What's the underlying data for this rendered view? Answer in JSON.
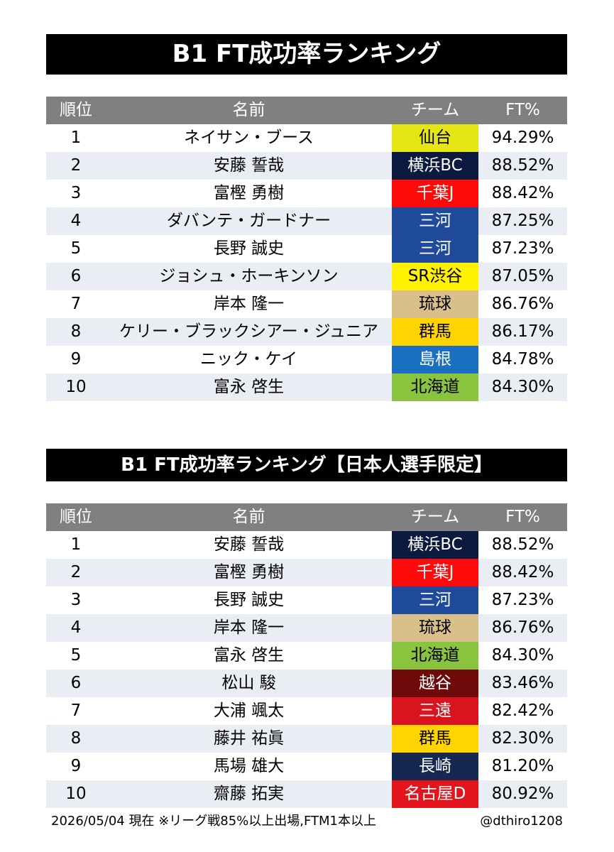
{
  "ranking_all": {
    "title": "B1 FT成功率ランキング",
    "headers": {
      "rank": "順位",
      "name": "名前",
      "team": "チーム",
      "ft": "FT%"
    },
    "rows": [
      {
        "rank": "1",
        "name": "ネイサン・ブース",
        "team": "仙台",
        "ft": "94.29%",
        "team_bg": "#e6e614",
        "team_fg": "#000000"
      },
      {
        "rank": "2",
        "name": "安藤 誓哉",
        "team": "横浜BC",
        "ft": "88.52%",
        "team_bg": "#0b1a3e",
        "team_fg": "#ffffff"
      },
      {
        "rank": "3",
        "name": "富樫 勇樹",
        "team": "千葉J",
        "ft": "88.42%",
        "team_bg": "#ff0a0a",
        "team_fg": "#ffffff"
      },
      {
        "rank": "4",
        "name": "ダバンテ・ガードナー",
        "team": "三河",
        "ft": "87.25%",
        "team_bg": "#1f4a9c",
        "team_fg": "#ffffff"
      },
      {
        "rank": "5",
        "name": "長野 誠史",
        "team": "三河",
        "ft": "87.23%",
        "team_bg": "#1f4a9c",
        "team_fg": "#ffffff"
      },
      {
        "rank": "6",
        "name": "ジョシュ・ホーキンソン",
        "team": "SR渋谷",
        "ft": "87.05%",
        "team_bg": "#fff200",
        "team_fg": "#000000"
      },
      {
        "rank": "7",
        "name": "岸本 隆一",
        "team": "琉球",
        "ft": "86.76%",
        "team_bg": "#d9c08a",
        "team_fg": "#000000"
      },
      {
        "rank": "8",
        "name": "ケリー・ブラックシアー・ジュニア",
        "team": "群馬",
        "ft": "86.17%",
        "team_bg": "#ffd400",
        "team_fg": "#000000"
      },
      {
        "rank": "9",
        "name": "ニック・ケイ",
        "team": "島根",
        "ft": "84.78%",
        "team_bg": "#1a6fc0",
        "team_fg": "#ffffff"
      },
      {
        "rank": "10",
        "name": "富永 啓生",
        "team": "北海道",
        "ft": "84.30%",
        "team_bg": "#8ac43f",
        "team_fg": "#000000"
      }
    ]
  },
  "ranking_japanese": {
    "title": "B1 FT成功率ランキング【日本人選手限定】",
    "headers": {
      "rank": "順位",
      "name": "名前",
      "team": "チーム",
      "ft": "FT%"
    },
    "rows": [
      {
        "rank": "1",
        "name": "安藤 誓哉",
        "team": "横浜BC",
        "ft": "88.52%",
        "team_bg": "#0b1a3e",
        "team_fg": "#ffffff"
      },
      {
        "rank": "2",
        "name": "富樫 勇樹",
        "team": "千葉J",
        "ft": "88.42%",
        "team_bg": "#ff0a0a",
        "team_fg": "#ffffff"
      },
      {
        "rank": "3",
        "name": "長野 誠史",
        "team": "三河",
        "ft": "87.23%",
        "team_bg": "#1f4a9c",
        "team_fg": "#ffffff"
      },
      {
        "rank": "4",
        "name": "岸本 隆一",
        "team": "琉球",
        "ft": "86.76%",
        "team_bg": "#d9c08a",
        "team_fg": "#000000"
      },
      {
        "rank": "5",
        "name": "富永 啓生",
        "team": "北海道",
        "ft": "84.30%",
        "team_bg": "#8ac43f",
        "team_fg": "#000000"
      },
      {
        "rank": "6",
        "name": "松山 駿",
        "team": "越谷",
        "ft": "83.46%",
        "team_bg": "#6e0a0a",
        "team_fg": "#ffffff"
      },
      {
        "rank": "7",
        "name": "大浦 颯太",
        "team": "三遠",
        "ft": "82.42%",
        "team_bg": "#d9141e",
        "team_fg": "#ffffff"
      },
      {
        "rank": "8",
        "name": "藤井 祐眞",
        "team": "群馬",
        "ft": "82.30%",
        "team_bg": "#ffd400",
        "team_fg": "#000000"
      },
      {
        "rank": "9",
        "name": "馬場 雄大",
        "team": "長崎",
        "ft": "81.20%",
        "team_bg": "#15284f",
        "team_fg": "#ffffff"
      },
      {
        "rank": "10",
        "name": "齋藤 拓実",
        "team": "名古屋D",
        "ft": "80.92%",
        "team_bg": "#e3141c",
        "team_fg": "#ffffff"
      }
    ]
  },
  "footer": {
    "note": "2026/05/04 現在 ※リーグ戦85%以上出場,FTM1本以上",
    "credit": "@dthiro1208"
  }
}
